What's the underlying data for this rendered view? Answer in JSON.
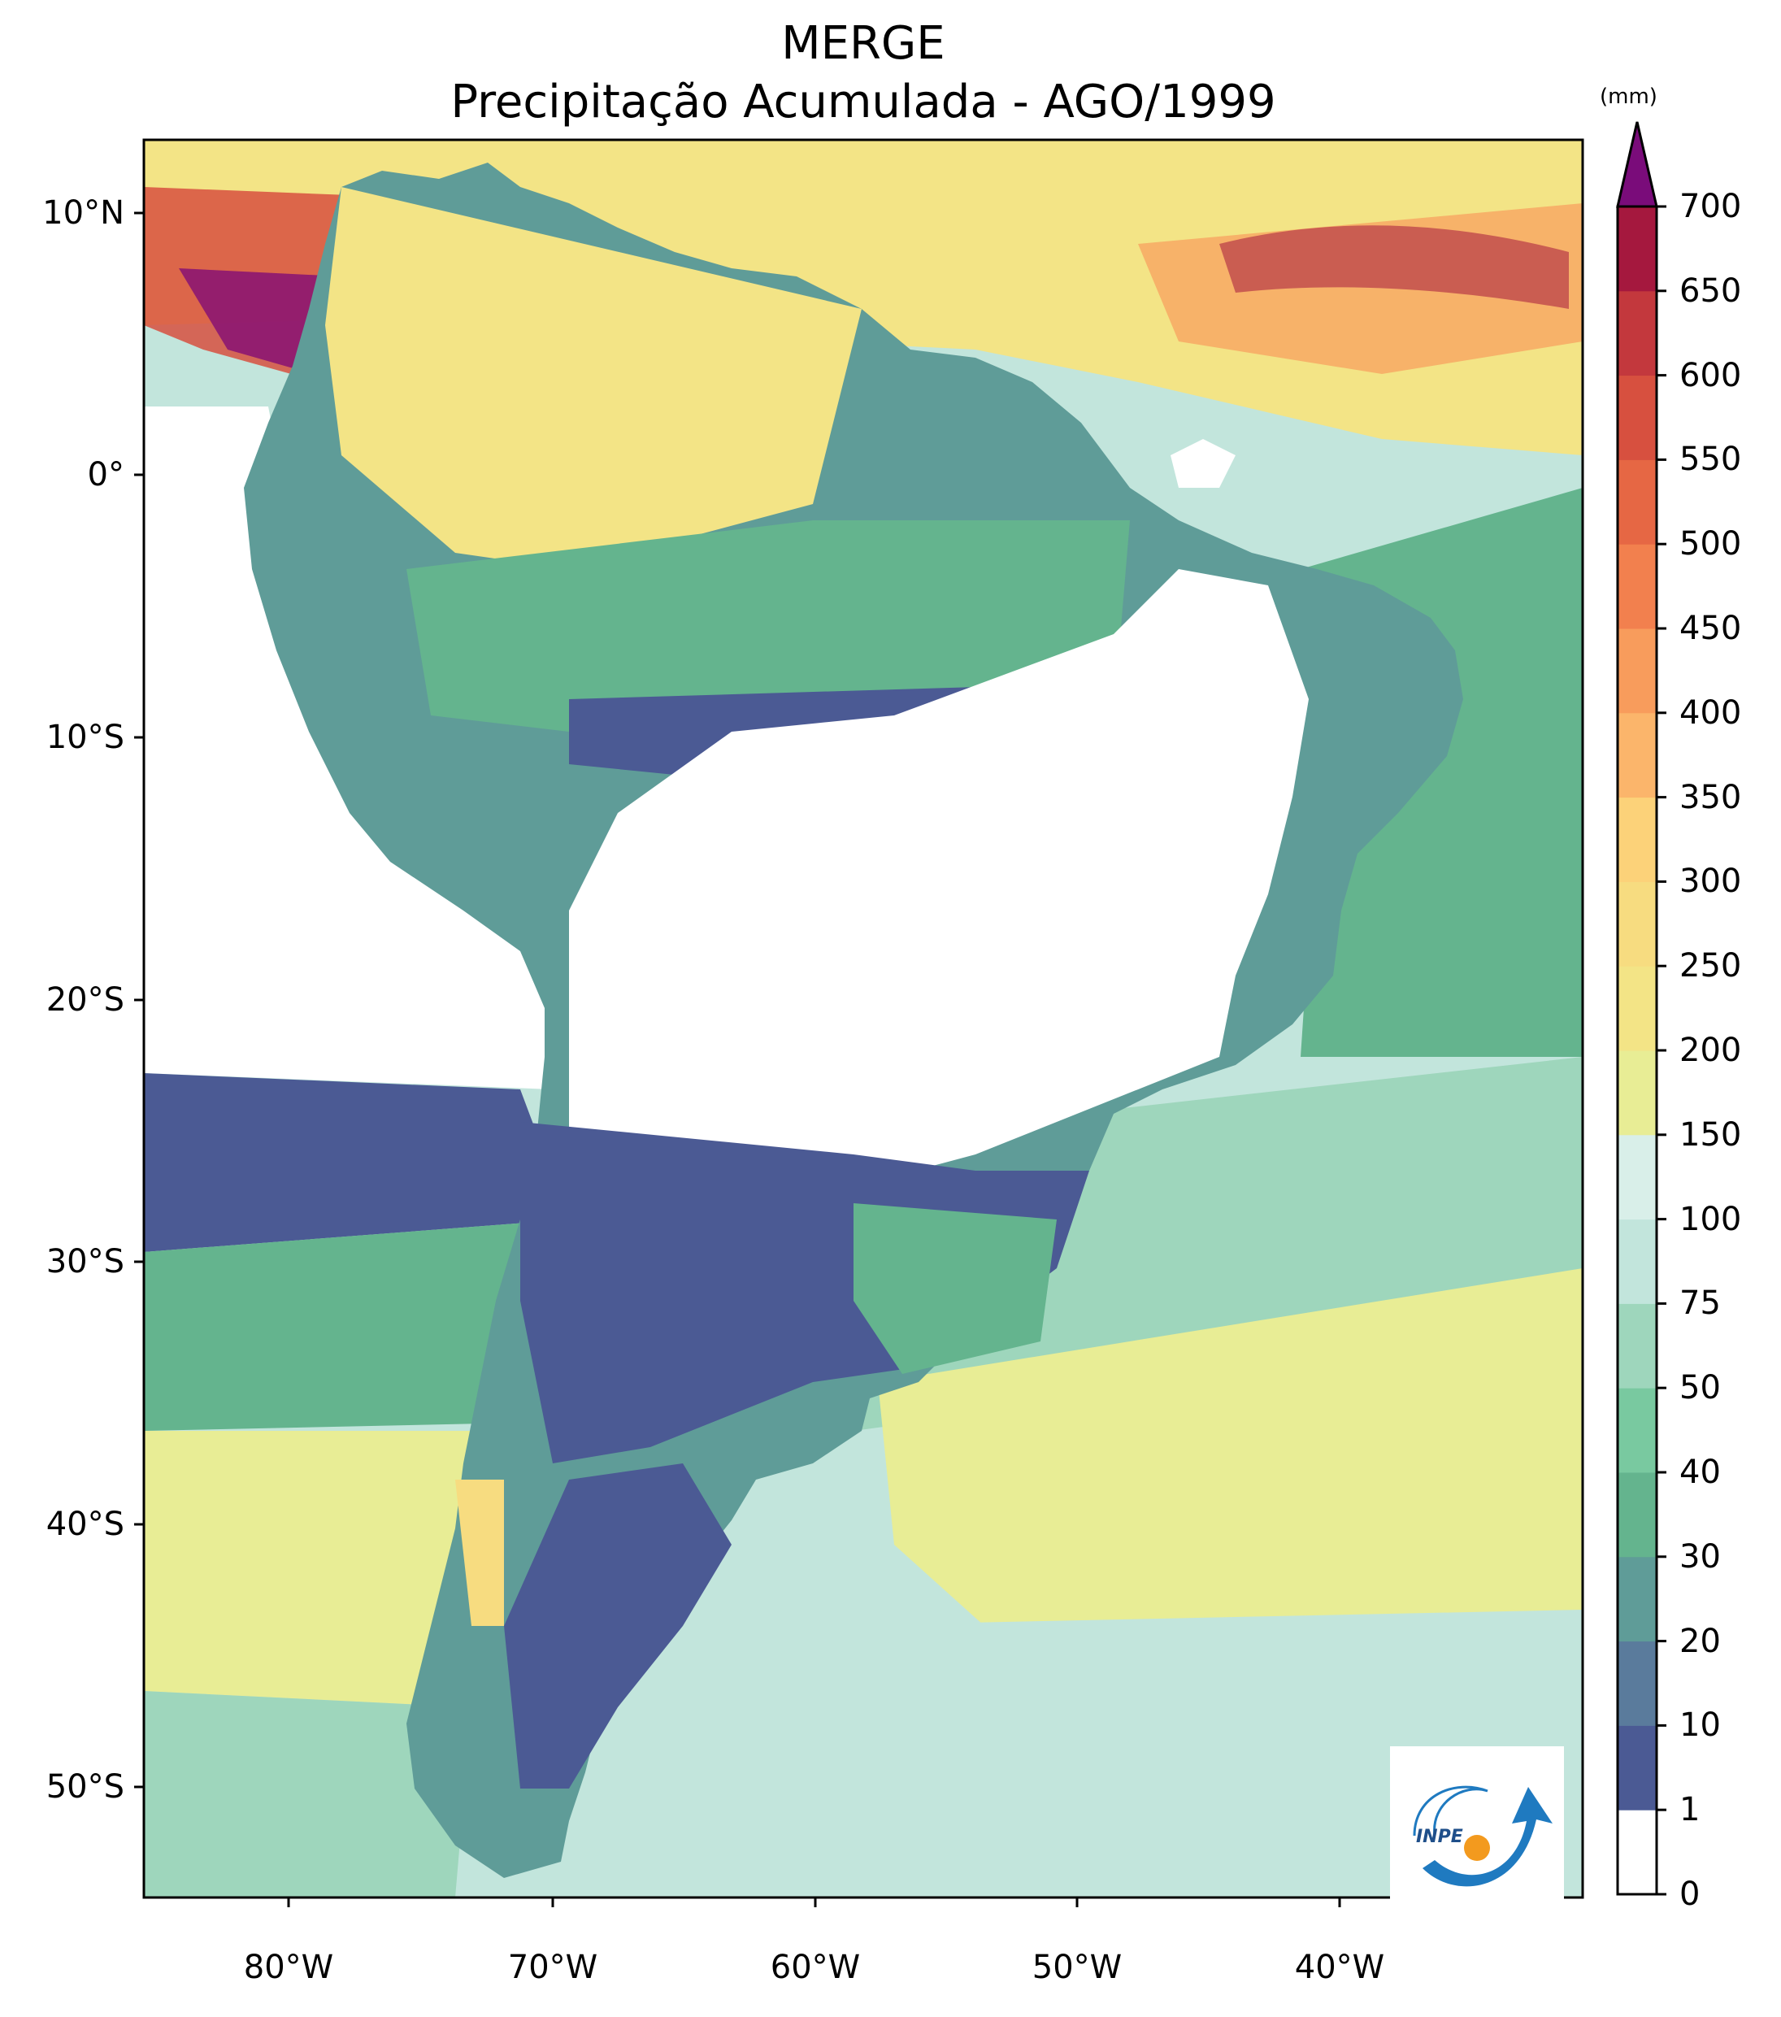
{
  "title": {
    "line1": "MERGE",
    "line2": "Precipitação Acumulada - AGO/1999"
  },
  "map": {
    "lat_ticks": [
      "10°N",
      "0°",
      "10°S",
      "20°S",
      "30°S",
      "40°S",
      "50°S"
    ],
    "lon_ticks": [
      "80°W",
      "70°W",
      "60°W",
      "50°W",
      "40°W"
    ],
    "extent": {
      "lon_min": -85,
      "lon_max": -30,
      "lat_min": -57,
      "lat_max": 13
    }
  },
  "colorbar": {
    "unit": "(mm)",
    "levels": [
      "0",
      "1",
      "10",
      "20",
      "30",
      "40",
      "50",
      "75",
      "100",
      "150",
      "200",
      "250",
      "300",
      "350",
      "400",
      "450",
      "500",
      "550",
      "600",
      "650",
      "700"
    ],
    "colors": [
      "#ffffff",
      "#4b5a94",
      "#5a7b9c",
      "#5f9c98",
      "#64b48e",
      "#79c9a0",
      "#9ed6bc",
      "#c2e5dc",
      "#d9efe9",
      "#e8ed95",
      "#f3e486",
      "#f7dc80",
      "#fcd279",
      "#fbb56b",
      "#f89c5c",
      "#f2804e",
      "#e66744",
      "#d7503f",
      "#c3383d",
      "#a5183e",
      "#820c76"
    ],
    "extend_color": "#7a0c7a"
  },
  "logo": {
    "text": "INPE",
    "brand_blue": "#1f7ac0",
    "brand_orange": "#f39a1e"
  }
}
